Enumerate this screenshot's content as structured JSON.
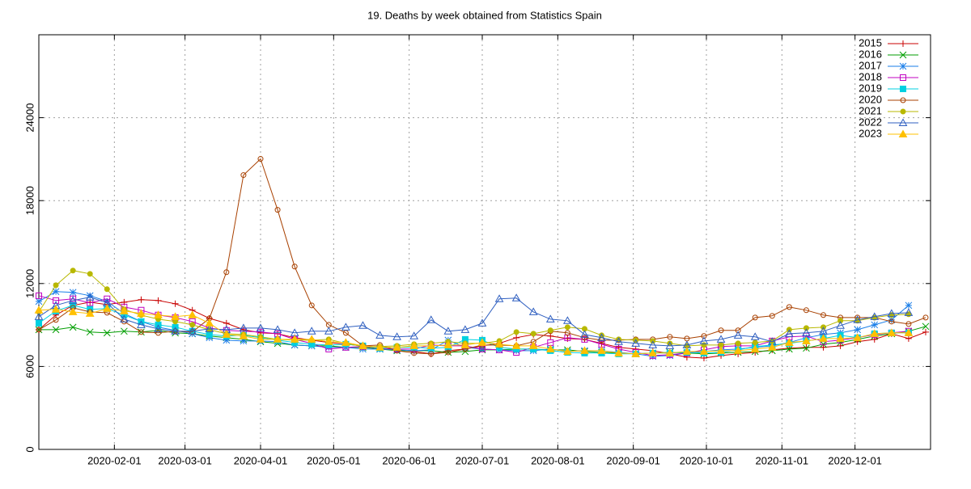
{
  "chart_data": {
    "type": "line",
    "title": "19. Deaths by week obtained from Statistics Spain",
    "x": [
      "2020-01-01",
      "2020-01-08",
      "2020-01-15",
      "2020-01-22",
      "2020-01-29",
      "2020-02-05",
      "2020-02-12",
      "2020-02-19",
      "2020-02-26",
      "2020-03-04",
      "2020-03-11",
      "2020-03-18",
      "2020-03-25",
      "2020-04-01",
      "2020-04-08",
      "2020-04-15",
      "2020-04-22",
      "2020-04-29",
      "2020-05-06",
      "2020-05-13",
      "2020-05-20",
      "2020-05-27",
      "2020-06-03",
      "2020-06-10",
      "2020-06-17",
      "2020-06-24",
      "2020-07-01",
      "2020-07-08",
      "2020-07-15",
      "2020-07-22",
      "2020-07-29",
      "2020-08-05",
      "2020-08-12",
      "2020-08-19",
      "2020-08-26",
      "2020-09-02",
      "2020-09-09",
      "2020-09-16",
      "2020-09-23",
      "2020-09-30",
      "2020-10-07",
      "2020-10-14",
      "2020-10-21",
      "2020-10-28",
      "2020-11-04",
      "2020-11-11",
      "2020-11-18",
      "2020-11-25",
      "2020-12-02",
      "2020-12-09",
      "2020-12-16",
      "2020-12-23",
      "2020-12-30"
    ],
    "xlim": [
      "2020-01-01",
      "2021-01-01"
    ],
    "xticks": [
      "2020-02-01",
      "2020-03-01",
      "2020-04-01",
      "2020-05-01",
      "2020-06-01",
      "2020-07-01",
      "2020-08-01",
      "2020-09-01",
      "2020-10-01",
      "2020-11-01",
      "2020-12-01"
    ],
    "ylim": [
      0,
      30000
    ],
    "yticks": [
      0,
      6000,
      12000,
      18000,
      24000
    ],
    "grid": true,
    "legend": "top-right",
    "series": [
      {
        "name": "2015",
        "color": "#c80000",
        "marker": "plus",
        "values": [
          8660,
          9720,
          10420,
          10650,
          10480,
          10650,
          10830,
          10770,
          10540,
          10070,
          9480,
          9130,
          8660,
          8430,
          8370,
          8080,
          7900,
          7730,
          7610,
          7490,
          7380,
          7200,
          7080,
          6910,
          7140,
          7260,
          7490,
          7670,
          8080,
          8310,
          8200,
          8020,
          7960,
          7670,
          7380,
          7260,
          7140,
          6910,
          6670,
          6610,
          6790,
          6910,
          7020,
          7200,
          7320,
          7380,
          7380,
          7490,
          7790,
          7960,
          8370,
          8020,
          8490
        ]
      },
      {
        "name": "2016",
        "color": "#009e00",
        "marker": "cross",
        "values": [
          8660,
          8660,
          8840,
          8490,
          8430,
          8550,
          8490,
          8610,
          8430,
          8370,
          8200,
          8080,
          7960,
          7790,
          7670,
          7550,
          7490,
          7490,
          7380,
          7380,
          7260,
          7140,
          7140,
          7140,
          7020,
          7080,
          7200,
          7200,
          7260,
          7260,
          7200,
          7200,
          7080,
          7020,
          6970,
          6910,
          6970,
          7020,
          6970,
          6910,
          6970,
          7020,
          7080,
          7140,
          7260,
          7320,
          7610,
          7730,
          7960,
          8200,
          8370,
          8550,
          8900
        ]
      },
      {
        "name": "2017",
        "color": "#1a7ee8",
        "marker": "star",
        "values": [
          10710,
          11420,
          11360,
          11120,
          10710,
          9830,
          9250,
          8840,
          8610,
          8370,
          8080,
          7900,
          7840,
          7840,
          7790,
          7550,
          7490,
          7380,
          7380,
          7260,
          7260,
          7200,
          7140,
          7200,
          7900,
          7380,
          7260,
          7200,
          7140,
          7140,
          7260,
          7080,
          7140,
          7140,
          7020,
          6910,
          6730,
          6790,
          6970,
          7080,
          7200,
          7260,
          7380,
          7490,
          7730,
          8080,
          8310,
          8430,
          8660,
          9010,
          9370,
          10420,
          null
        ]
      },
      {
        "name": "2018",
        "color": "#c000c0",
        "marker": "square",
        "values": [
          11120,
          10770,
          10890,
          10600,
          10890,
          10300,
          10070,
          9720,
          9540,
          9250,
          8780,
          8610,
          8550,
          8490,
          8370,
          7960,
          7670,
          7260,
          7380,
          7440,
          7320,
          7260,
          7260,
          7550,
          7490,
          7490,
          7260,
          7200,
          7020,
          7380,
          7730,
          8080,
          7960,
          7610,
          7260,
          7020,
          6790,
          6850,
          6970,
          7200,
          7440,
          7490,
          7490,
          7840,
          8140,
          8200,
          7790,
          7900,
          8080,
          8310,
          8430,
          8550,
          null
        ]
      },
      {
        "name": "2019",
        "color": "#00d0e0",
        "marker": "fsquare",
        "values": [
          9130,
          10010,
          10420,
          10130,
          10190,
          9720,
          9250,
          9010,
          8840,
          8550,
          8310,
          8200,
          8250,
          8080,
          7900,
          7730,
          7610,
          7550,
          7610,
          7490,
          7320,
          7380,
          7380,
          7320,
          7380,
          7960,
          7900,
          7380,
          7260,
          7260,
          7140,
          7020,
          6970,
          6970,
          6910,
          6910,
          6970,
          6970,
          7020,
          6970,
          7020,
          7200,
          7440,
          7550,
          7670,
          7840,
          8020,
          8250,
          8080,
          8370,
          8430,
          8430,
          null
        ]
      },
      {
        "name": "2020",
        "color": "#a84000",
        "marker": "circle",
        "values": [
          8660,
          9370,
          10240,
          9950,
          9890,
          9250,
          8490,
          8430,
          8550,
          8490,
          9480,
          12820,
          19850,
          21020,
          17330,
          13230,
          10420,
          9010,
          8430,
          7490,
          7550,
          7140,
          6970,
          6910,
          7020,
          7260,
          7550,
          7550,
          7490,
          7790,
          8550,
          8430,
          8080,
          7900,
          7900,
          7960,
          7960,
          8140,
          8020,
          8200,
          8610,
          8610,
          9540,
          9660,
          10300,
          10070,
          9720,
          9540,
          9540,
          9540,
          9250,
          9070,
          9540
        ]
      },
      {
        "name": "2021",
        "color": "#b8b800",
        "marker": "fcircle",
        "values": [
          9950,
          11880,
          12940,
          12700,
          11590,
          10130,
          9720,
          9420,
          9250,
          9010,
          8660,
          8370,
          8310,
          8140,
          7960,
          7900,
          7900,
          7960,
          7670,
          7440,
          7440,
          7490,
          7610,
          7670,
          7790,
          7670,
          7670,
          7840,
          8490,
          8370,
          8610,
          8840,
          8720,
          8250,
          7960,
          7900,
          7840,
          7670,
          7490,
          7550,
          7550,
          7670,
          7730,
          7840,
          8660,
          8780,
          8840,
          9310,
          9310,
          9540,
          9720,
          9780,
          null
        ]
      },
      {
        "name": "2022",
        "color": "#2f5fc0",
        "marker": "triangle",
        "values": [
          9600,
          10420,
          10770,
          11010,
          10600,
          9420,
          9010,
          8720,
          8550,
          8550,
          8720,
          8660,
          8780,
          8780,
          8660,
          8430,
          8550,
          8550,
          8840,
          8960,
          8250,
          8140,
          8200,
          9370,
          8550,
          8660,
          9130,
          10890,
          10950,
          9950,
          9420,
          9310,
          8310,
          8080,
          7790,
          7670,
          7550,
          7490,
          7550,
          7840,
          7960,
          8250,
          8140,
          7790,
          8370,
          8430,
          8550,
          8960,
          9370,
          9600,
          9830,
          9890,
          null
        ]
      },
      {
        "name": "2023",
        "color": "#ffc000",
        "marker": "ftriangle",
        "values": [
          10070,
          10130,
          9950,
          9830,
          10190,
          10010,
          9830,
          9720,
          9600,
          9720,
          9130,
          8310,
          8200,
          7960,
          7960,
          7960,
          7960,
          7790,
          7730,
          7490,
          7380,
          7380,
          7490,
          7490,
          7550,
          7550,
          7730,
          7610,
          7490,
          7490,
          7260,
          7080,
          7140,
          7140,
          6970,
          6910,
          6970,
          6970,
          7080,
          7080,
          7140,
          7140,
          7260,
          7380,
          7730,
          7840,
          8020,
          8020,
          8080,
          8370,
          8430,
          8430,
          null
        ]
      }
    ]
  }
}
